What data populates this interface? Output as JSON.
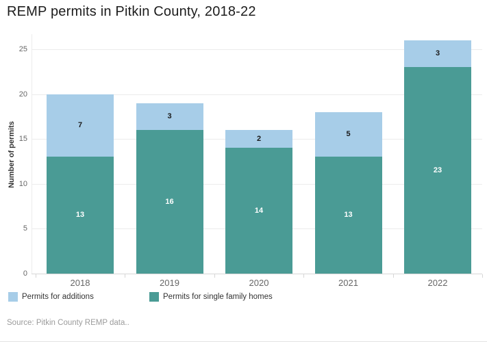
{
  "page": {
    "title": "REMP permits in Pitkin County, 2018-22",
    "source_note": "Source: Pitkin County REMP data.."
  },
  "chart_data": {
    "type": "bar",
    "subtype": "stacked-vertical-columns",
    "title": "REMP permits in Pitkin County, 2018-22",
    "xlabel": "",
    "ylabel": "Number of permits",
    "categories": [
      "2018",
      "2019",
      "2020",
      "2021",
      "2022"
    ],
    "series": [
      {
        "name": "Permits for additions",
        "color": "#a7cde8",
        "value_label_color": "#1a1a1a",
        "values": [
          7,
          3,
          2,
          5,
          3
        ]
      },
      {
        "name": "Permits for single family homes",
        "color": "#4a9b95",
        "value_label_color": "#ffffff",
        "values": [
          13,
          16,
          14,
          13,
          23
        ]
      }
    ],
    "stack_order_bottom_to_top": [
      "Permits for single family homes",
      "Permits for additions"
    ],
    "totals": [
      20,
      19,
      16,
      18,
      26
    ],
    "ylim": [
      0,
      26
    ],
    "yticks": [
      0,
      5,
      10,
      15,
      20,
      25
    ],
    "grid": "horizontal",
    "legend_position": "bottom",
    "value_labels": "inside-center"
  },
  "legend": {
    "items": [
      {
        "label": "Permits for additions",
        "color": "#a7cde8"
      },
      {
        "label": "Permits for single family homes",
        "color": "#4a9b95"
      }
    ]
  }
}
